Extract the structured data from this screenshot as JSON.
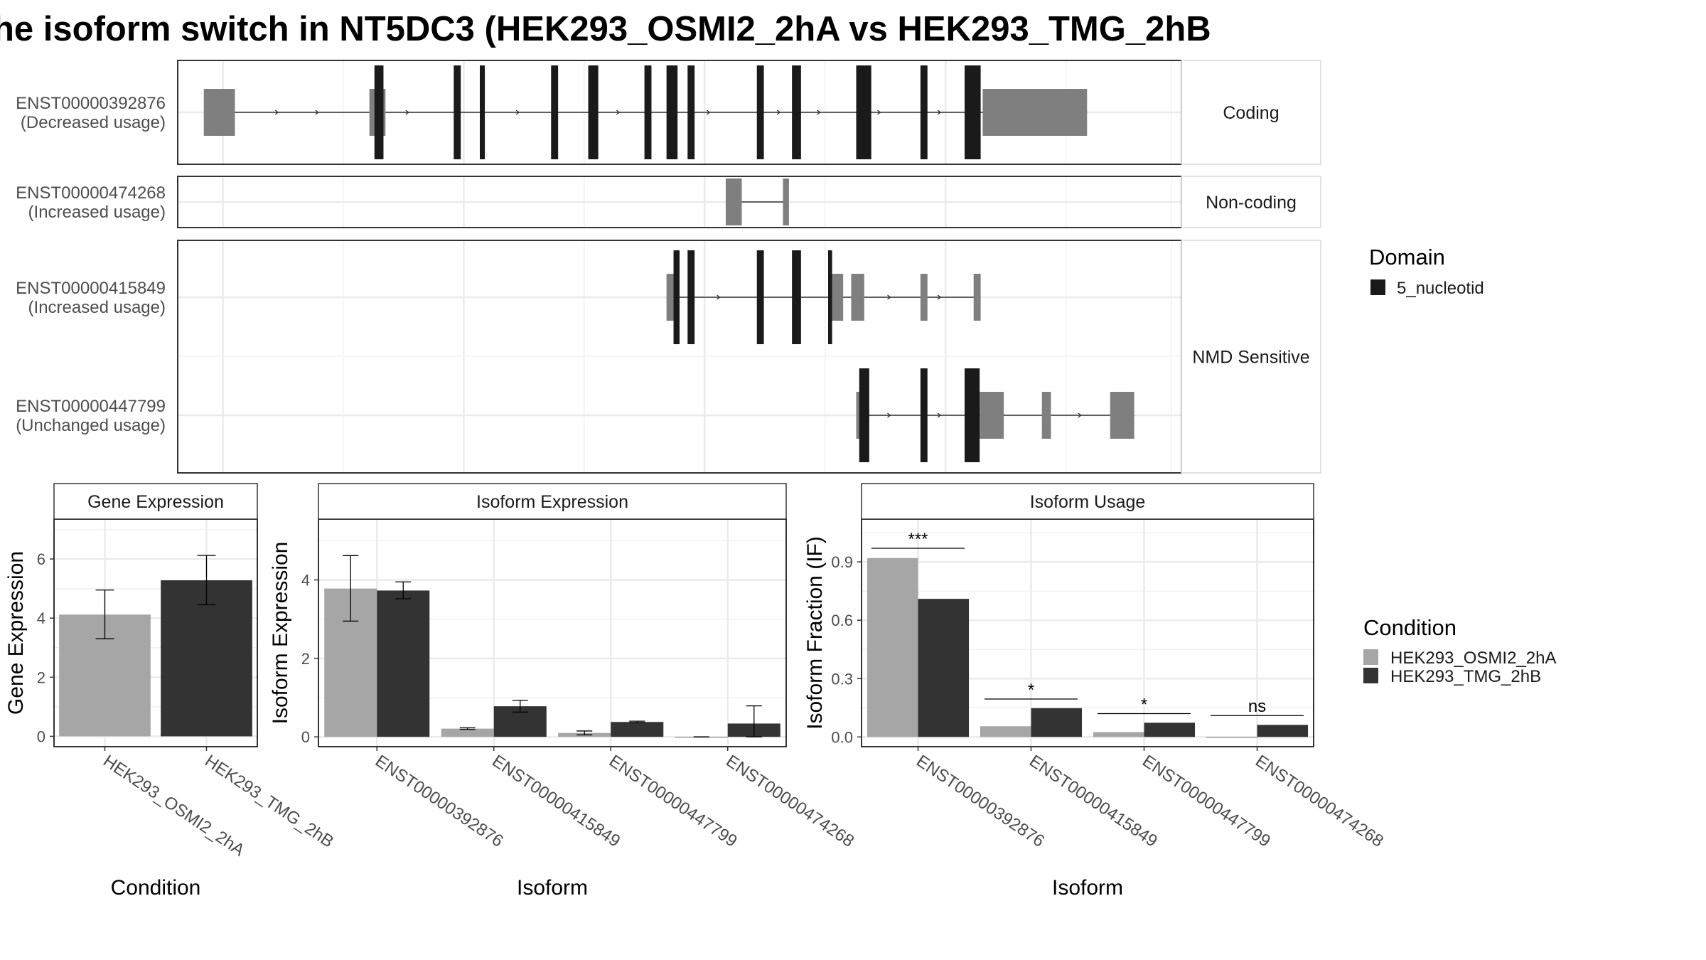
{
  "title": "he isoform switch in NT5DC3 (HEK293_OSMI2_2hA vs HEK293_TMG_2hB",
  "colors": {
    "cond_a": "#a6a6a6",
    "cond_b": "#333333",
    "domain": "#1a1a1a",
    "utr": "#7f7f7f",
    "intron": "#333333",
    "grid": "#ebebeb",
    "panel_border": "#333333",
    "strip_fill": "#ffffff"
  },
  "structure": {
    "facets": [
      {
        "label": "Coding",
        "transcripts": [
          0
        ]
      },
      {
        "label": "Non-coding",
        "transcripts": [
          1
        ]
      },
      {
        "label": "NMD Sensitive",
        "transcripts": [
          2,
          3
        ]
      }
    ],
    "transcripts": [
      {
        "id": "ENST00000392876",
        "usage": "(Decreased usage)",
        "start": 0.026,
        "end": 0.906,
        "utr": [
          [
            0.026,
            0.057
          ],
          [
            0.191,
            0.207
          ],
          [
            0.802,
            0.906
          ]
        ],
        "cds": [
          [
            0.196,
            0.205
          ],
          [
            0.275,
            0.282
          ],
          [
            0.301,
            0.306
          ],
          [
            0.372,
            0.379
          ],
          [
            0.409,
            0.419
          ],
          [
            0.465,
            0.472
          ],
          [
            0.487,
            0.498
          ],
          [
            0.508,
            0.515
          ],
          [
            0.577,
            0.584
          ],
          [
            0.612,
            0.621
          ],
          [
            0.676,
            0.691
          ],
          [
            0.74,
            0.747
          ],
          [
            0.784,
            0.8
          ]
        ],
        "arrows": [
          0.1,
          0.14,
          0.23,
          0.34,
          0.44,
          0.53,
          0.6,
          0.64,
          0.7,
          0.76
        ]
      },
      {
        "id": "ENST00000474268",
        "usage": "(Increased usage)",
        "start": 0.546,
        "end": 0.609,
        "utr": [
          [
            0.546,
            0.562
          ],
          [
            0.603,
            0.609
          ]
        ],
        "cds": [],
        "arrows": []
      },
      {
        "id": "ENST00000415849",
        "usage": "(Increased usage)",
        "start": 0.487,
        "end": 0.8,
        "utr": [
          [
            0.487,
            0.498
          ],
          [
            0.651,
            0.663
          ],
          [
            0.671,
            0.684
          ],
          [
            0.74,
            0.747
          ],
          [
            0.793,
            0.8
          ]
        ],
        "cds": [
          [
            0.494,
            0.5
          ],
          [
            0.508,
            0.515
          ],
          [
            0.577,
            0.584
          ],
          [
            0.612,
            0.621
          ],
          [
            0.648,
            0.652
          ]
        ],
        "arrows": [
          0.54,
          0.71,
          0.76
        ]
      },
      {
        "id": "ENST00000447799",
        "usage": "(Unchanged usage)",
        "start": 0.676,
        "end": 0.953,
        "utr": [
          [
            0.676,
            0.685
          ],
          [
            0.784,
            0.8
          ],
          [
            0.8,
            0.823
          ],
          [
            0.861,
            0.87
          ],
          [
            0.929,
            0.953
          ]
        ],
        "cds": [
          [
            0.679,
            0.689
          ],
          [
            0.74,
            0.747
          ],
          [
            0.784,
            0.799
          ]
        ],
        "arrows": [
          0.71,
          0.76,
          0.9
        ]
      }
    ]
  },
  "legend_domain": {
    "title": "Domain",
    "entries": [
      "5_nucleotid"
    ]
  },
  "legend_condition": {
    "title": "Condition",
    "entries": [
      "HEK293_OSMI2_2hA",
      "HEK293_TMG_2hB"
    ]
  },
  "chart_data": [
    {
      "type": "bar",
      "title": "Gene Expression",
      "xlabel": "Condition",
      "ylabel": "Gene Expression",
      "categories": [
        "HEK293_OSMI2_2hA",
        "HEK293_TMG_2hB"
      ],
      "values": [
        4.12,
        5.28
      ],
      "errors": [
        [
          3.3,
          4.95
        ],
        [
          4.45,
          6.12
        ]
      ],
      "colors": [
        "cond_a",
        "cond_b"
      ],
      "ylim": [
        -0.35,
        7.35
      ],
      "yticks": [
        0,
        2,
        4,
        6
      ],
      "grid": true
    },
    {
      "type": "bar",
      "title": "Isoform Expression",
      "xlabel": "Isoform",
      "ylabel": "Isoform Expression",
      "categories": [
        "ENST00000392876",
        "ENST00000415849",
        "ENST00000447799",
        "ENST00000474268"
      ],
      "series": [
        {
          "name": "HEK293_OSMI2_2hA",
          "values": [
            3.78,
            0.21,
            0.1,
            0.0
          ],
          "errors": [
            [
              2.95,
              4.62
            ],
            [
              0.19,
              0.23
            ],
            [
              0.05,
              0.15
            ],
            [
              0.0,
              0.0
            ]
          ]
        },
        {
          "name": "HEK293_TMG_2hB",
          "values": [
            3.73,
            0.78,
            0.38,
            0.34
          ],
          "errors": [
            [
              3.52,
              3.95
            ],
            [
              0.63,
              0.93
            ],
            [
              0.36,
              0.4
            ],
            [
              0.0,
              0.79
            ]
          ]
        }
      ],
      "ylim": [
        -0.25,
        5.55
      ],
      "yticks": [
        0,
        2,
        4
      ],
      "grid": true
    },
    {
      "type": "bar",
      "title": "Isoform Usage",
      "xlabel": "Isoform",
      "ylabel": "Isoform Fraction (IF)",
      "categories": [
        "ENST00000392876",
        "ENST00000415849",
        "ENST00000447799",
        "ENST00000474268"
      ],
      "series": [
        {
          "name": "HEK293_OSMI2_2hA",
          "values": [
            0.92,
            0.055,
            0.025,
            0.0
          ]
        },
        {
          "name": "HEK293_TMG_2hB",
          "values": [
            0.71,
            0.148,
            0.073,
            0.062
          ]
        }
      ],
      "significance": [
        {
          "label": "***",
          "y": 0.97
        },
        {
          "label": "*",
          "y": 0.195
        },
        {
          "label": "*",
          "y": 0.12
        },
        {
          "label": "ns",
          "y": 0.11
        }
      ],
      "ylim": [
        -0.05,
        1.12
      ],
      "yticks": [
        0.0,
        0.3,
        0.6,
        0.9
      ],
      "ytick_labels": [
        "0.0",
        "0.3",
        "0.6",
        "0.9"
      ],
      "grid": true
    }
  ]
}
